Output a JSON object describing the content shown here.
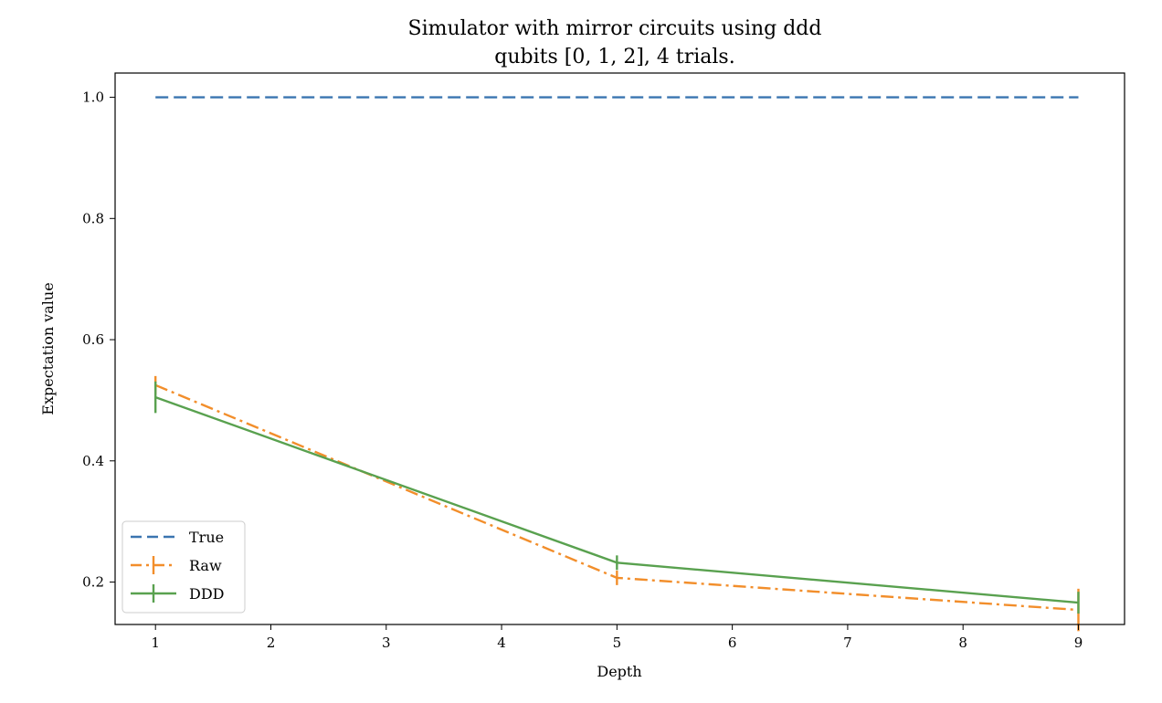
{
  "chart_data": {
    "type": "line",
    "title": [
      "Simulator with mirror circuits using ddd",
      "qubits [0, 1, 2], 4 trials."
    ],
    "xlabel": "Depth",
    "ylabel": "Expectation value",
    "xlim": [
      0.65,
      9.4
    ],
    "ylim": [
      0.13,
      1.04
    ],
    "xticks": [
      1,
      2,
      3,
      4,
      5,
      6,
      7,
      8,
      9
    ],
    "yticks": [
      0.2,
      0.4,
      0.6,
      0.8,
      1.0
    ],
    "ytick_labels": [
      "0.2",
      "0.4",
      "0.6",
      "0.8",
      "1.0"
    ],
    "grid": false,
    "legend_position": "lower-left",
    "series": [
      {
        "name": "True",
        "color": "#3a75b0",
        "dash": "dashed",
        "x": [
          1,
          9
        ],
        "y": [
          1.0,
          1.0
        ],
        "err": null
      },
      {
        "name": "Raw",
        "color": "#f28e2b",
        "dash": "dashdot",
        "x": [
          1,
          5,
          9
        ],
        "y": [
          0.525,
          0.207,
          0.154
        ],
        "err": [
          0.015,
          0.012,
          0.035
        ]
      },
      {
        "name": "DDD",
        "color": "#59a14f",
        "dash": "solid",
        "x": [
          1,
          5,
          9
        ],
        "y": [
          0.505,
          0.232,
          0.166
        ],
        "err": [
          0.026,
          0.012,
          0.018
        ]
      }
    ]
  }
}
